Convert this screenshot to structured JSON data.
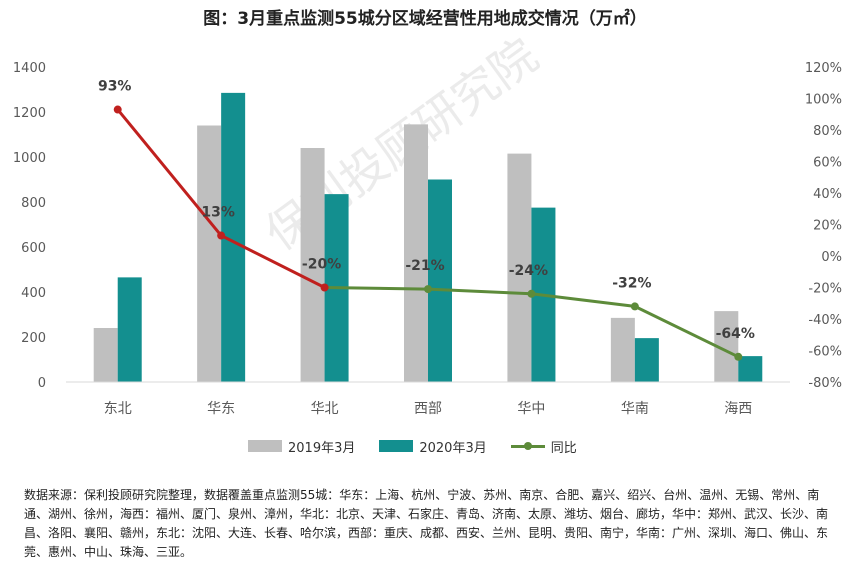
{
  "chart_data": {
    "type": "bar",
    "title": "图：3月重点监测55城分区域经营性用地成交情况（万㎡）",
    "categories": [
      "东北",
      "华东",
      "华北",
      "西部",
      "华中",
      "华南",
      "海西"
    ],
    "series": [
      {
        "name": "2019年3月",
        "type": "bar",
        "axis": "left",
        "color": "#bfbfbf",
        "values": [
          240,
          1140,
          1040,
          1145,
          1015,
          285,
          315
        ]
      },
      {
        "name": "2020年3月",
        "type": "bar",
        "axis": "left",
        "color": "#138f8f",
        "values": [
          465,
          1285,
          835,
          900,
          775,
          195,
          115
        ]
      },
      {
        "name": "同比",
        "type": "line",
        "axis": "right",
        "values": [
          93,
          13,
          -20,
          -21,
          -24,
          -32,
          -64
        ],
        "labels": [
          "93%",
          "13%",
          "-20%",
          "-21%",
          "-24%",
          "-32%",
          "-64%"
        ],
        "segment_colors": [
          "#c0201e",
          "#c0201e",
          "#5d8b3a",
          "#5d8b3a",
          "#5d8b3a",
          "#5d8b3a"
        ],
        "point_colors": [
          "#c0201e",
          "#c0201e",
          "#c0201e",
          "#5d8b3a",
          "#5d8b3a",
          "#5d8b3a",
          "#5d8b3a"
        ]
      }
    ],
    "left_axis": {
      "min": 0,
      "max": 1400,
      "step": 200,
      "tick_labels": [
        "0",
        "200",
        "400",
        "600",
        "800",
        "1000",
        "1200",
        "1400"
      ]
    },
    "right_axis": {
      "min": -80,
      "max": 120,
      "step": 20,
      "tick_labels": [
        "-80%",
        "-60%",
        "-40%",
        "-20%",
        "0%",
        "20%",
        "40%",
        "60%",
        "80%",
        "100%",
        "120%"
      ]
    },
    "grid": false,
    "legend_position": "bottom"
  },
  "watermark": "保利投顾研究院",
  "source_note": "数据来源：保利投顾研究院整理，数据覆盖重点监测55城：华东：上海、杭州、宁波、苏州、南京、合肥、嘉兴、绍兴、台州、温州、无锡、常州、南通、湖州、徐州，海西：福州、厦门、泉州、漳州，华北：北京、天津、石家庄、青岛、济南、太原、潍坊、烟台、廊坊，华中：郑州、武汉、长沙、南昌、洛阳、襄阳、赣州，东北：沈阳、大连、长春、哈尔滨，西部：重庆、成都、西安、兰州、昆明、贵阳、南宁，华南：广州、深圳、海口、佛山、东莞、惠州、中山、珠海、三亚。"
}
